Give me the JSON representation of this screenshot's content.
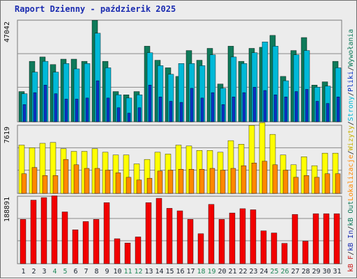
{
  "title": "Raport Dzienny -  paździerik 2025",
  "colors": {
    "hits_top": "#0f7a5a",
    "files": "#00b9d8",
    "pages": "#0b33c7",
    "visits": "#ffff00",
    "sites": "#ff8800",
    "kbin": "#f20000",
    "grid": "#8a8a8a",
    "panel_bg": "#ececec",
    "day_normal": "#1a2330",
    "day_weekend": "#1f8a5a"
  },
  "chart_data": [
    {
      "type": "bar",
      "panel": "top",
      "ymax_label": "47042",
      "ylim": [
        0,
        47042
      ],
      "categories": [
        "1",
        "2",
        "3",
        "4",
        "5",
        "6",
        "7",
        "8",
        "9",
        "10",
        "11",
        "12",
        "13",
        "14",
        "15",
        "16",
        "17",
        "18",
        "19",
        "20",
        "21",
        "22",
        "23",
        "24",
        "25",
        "26",
        "27",
        "28",
        "29",
        "30",
        "31"
      ],
      "series": [
        {
          "name": "Wywołania",
          "values": [
            14000,
            28000,
            30000,
            26500,
            29000,
            29000,
            28000,
            47000,
            28000,
            14000,
            12500,
            14000,
            35000,
            28500,
            25000,
            21000,
            33000,
            28500,
            34000,
            17500,
            35000,
            28000,
            34000,
            34500,
            40000,
            21000,
            33000,
            39000,
            17000,
            18500,
            28000
          ]
        },
        {
          "name": "Pliki",
          "values": [
            13000,
            23000,
            28000,
            23000,
            27000,
            24500,
            27000,
            41000,
            25000,
            12500,
            11000,
            12500,
            32000,
            26000,
            22000,
            27000,
            27000,
            26000,
            31000,
            15500,
            30000,
            27000,
            32000,
            37000,
            35000,
            19000,
            31000,
            33000,
            16000,
            16500,
            25000
          ]
        },
        {
          "name": "Strony",
          "values": [
            8000,
            13500,
            17000,
            13000,
            10500,
            10500,
            11000,
            19000,
            11000,
            6500,
            4000,
            6500,
            17000,
            11500,
            9500,
            9000,
            15500,
            11000,
            13500,
            8000,
            11500,
            13500,
            16000,
            14500,
            12500,
            11500,
            14000,
            15000,
            9500,
            8500,
            11500
          ]
        }
      ],
      "legend": [
        "Wywołania",
        "Pliki",
        "Strony"
      ]
    },
    {
      "type": "bar",
      "panel": "middle",
      "ymax_label": "7619",
      "ylim": [
        0,
        7619
      ],
      "categories": [
        "1",
        "2",
        "3",
        "4",
        "5",
        "6",
        "7",
        "8",
        "9",
        "10",
        "11",
        "12",
        "13",
        "14",
        "15",
        "16",
        "17",
        "18",
        "19",
        "20",
        "21",
        "22",
        "23",
        "24",
        "25",
        "26",
        "27",
        "28",
        "29",
        "30",
        "31"
      ],
      "series": [
        {
          "name": "Wizyty",
          "values": [
            5400,
            5100,
            5600,
            5700,
            5000,
            4700,
            4700,
            5000,
            4600,
            4300,
            4300,
            3300,
            3800,
            4600,
            4400,
            5400,
            5300,
            4800,
            4800,
            4600,
            5900,
            5500,
            7600,
            7900,
            6600,
            4300,
            3200,
            4100,
            3100,
            4500,
            4500
          ]
        },
        {
          "name": "Lokalizacje",
          "values": [
            2200,
            2900,
            2000,
            2000,
            3800,
            3200,
            2800,
            2800,
            2600,
            2300,
            1800,
            1500,
            1700,
            2500,
            2600,
            2700,
            2700,
            2700,
            2800,
            2600,
            2800,
            3100,
            3400,
            3600,
            3200,
            2600,
            1800,
            2000,
            1800,
            2200,
            2200
          ]
        }
      ],
      "legend": [
        "Wizyty",
        "Lokalizacje"
      ]
    },
    {
      "type": "bar",
      "panel": "bottom",
      "ymax_label": "188891",
      "ylim": [
        0,
        188891
      ],
      "categories": [
        "1",
        "2",
        "3",
        "4",
        "5",
        "6",
        "7",
        "8",
        "9",
        "10",
        "11",
        "12",
        "13",
        "14",
        "15",
        "16",
        "17",
        "18",
        "19",
        "20",
        "21",
        "22",
        "23",
        "24",
        "25",
        "26",
        "27",
        "28",
        "29",
        "30",
        "31"
      ],
      "series": [
        {
          "name": "kB F",
          "values": [
            124000,
            178000,
            185000,
            190000,
            145000,
            95000,
            118000,
            124000,
            171000,
            70000,
            58000,
            75000,
            171000,
            183000,
            155000,
            148000,
            124000,
            84000,
            166000,
            124000,
            142000,
            154000,
            151000,
            92000,
            86000,
            57000,
            138000,
            63000,
            140000,
            140000,
            140000
          ]
        }
      ],
      "legend": [
        "kB F",
        "kB In",
        "kB Out"
      ]
    }
  ],
  "legend_text": {
    "right_top_1": "Wywołania",
    "right_top_2": "Pliki",
    "right_top_3": "Strony",
    "right_mid_1": "Wizyty",
    "right_mid_2": "Lokalizacje",
    "right_bottom_1": "kB F",
    "right_bottom_2": "kB In",
    "right_bottom_3": "kB Out",
    "sep": "/"
  }
}
